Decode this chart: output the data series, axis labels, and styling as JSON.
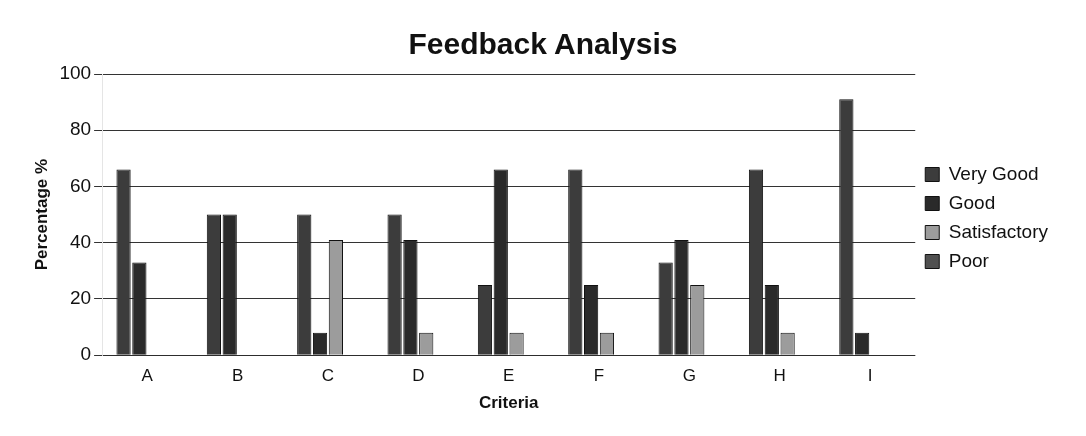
{
  "chart_data": {
    "type": "bar",
    "title": "Feedback Analysis",
    "xlabel": "Criteria",
    "ylabel": "Percentage %",
    "categories": [
      "A",
      "B",
      "C",
      "D",
      "E",
      "F",
      "G",
      "H",
      "I"
    ],
    "series": [
      {
        "name": "Very Good",
        "color": "#3c3c3c",
        "values": [
          66,
          50,
          50,
          50,
          25,
          66,
          33,
          66,
          91
        ]
      },
      {
        "name": "Good",
        "color": "#2a2a2a",
        "values": [
          33,
          50,
          8,
          41,
          66,
          25,
          41,
          25,
          8
        ]
      },
      {
        "name": "Satisfactory",
        "color": "#9c9c9c",
        "values": [
          0,
          0,
          41,
          8,
          8,
          8,
          25,
          8,
          0
        ]
      },
      {
        "name": "Poor",
        "color": "#505050",
        "values": [
          0,
          0,
          0,
          0,
          0,
          0,
          0,
          0,
          0
        ]
      }
    ],
    "ylim": [
      0,
      100
    ],
    "yticks": [
      0,
      20,
      40,
      60,
      80,
      100
    ],
    "grid": "y",
    "legend": "right"
  }
}
